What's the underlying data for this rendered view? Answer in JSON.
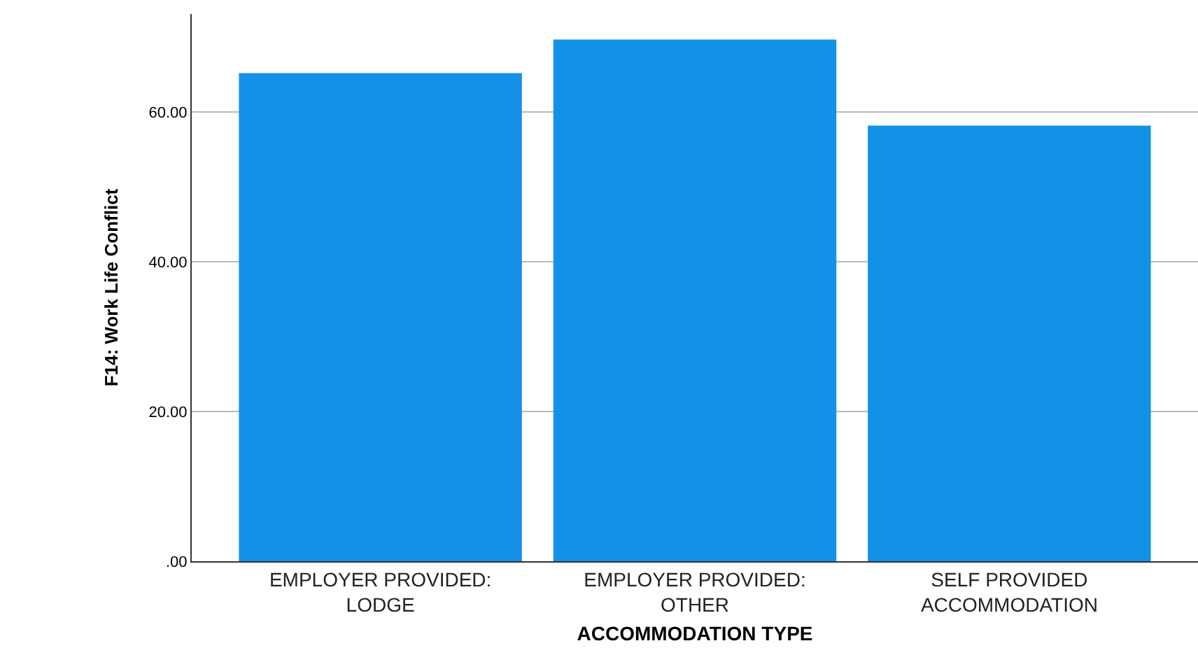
{
  "chart_data": {
    "type": "bar",
    "xlabel": "ACCOMMODATION TYPE",
    "ylabel": "F14: Work Life Conflict",
    "categories": [
      "EMPLOYER PROVIDED:\nLODGE",
      "EMPLOYER PROVIDED:\nOTHER",
      "SELF PROVIDED\nACCOMMODATION"
    ],
    "values": [
      65.2,
      69.7,
      58.2
    ],
    "color": "#1391e6",
    "ylim": [
      0,
      73.1
    ],
    "yticks": [
      {
        "value": 0,
        "label": ".00"
      },
      {
        "value": 20,
        "label": "20.00"
      },
      {
        "value": 40,
        "label": "40.00"
      },
      {
        "value": 60,
        "label": "60.00"
      }
    ],
    "grid": "y"
  }
}
